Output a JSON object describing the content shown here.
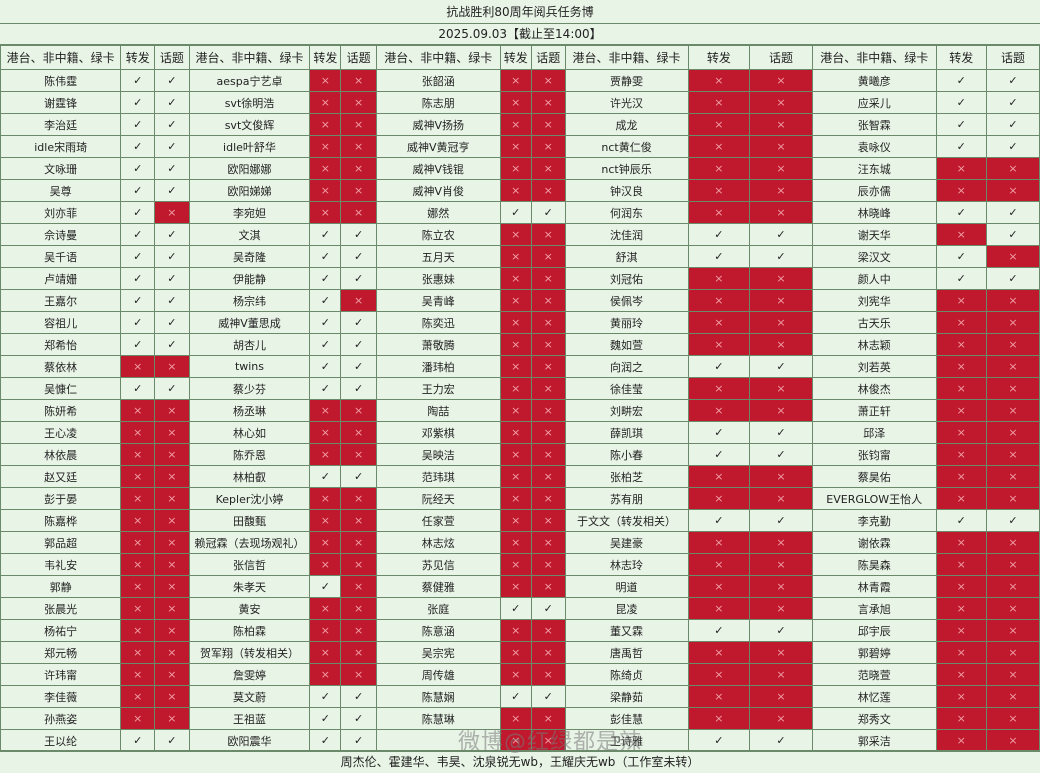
{
  "title": "抗战胜利80周年阅兵任务博",
  "subtitle": "2025.09.03【截止至14:00】",
  "headers": [
    "港台、非中籍、绿卡",
    "转发",
    "话题",
    "港台、非中籍、绿卡",
    "转发",
    "话题",
    "港台、非中籍、绿卡",
    "转发",
    "话题",
    "港台、非中籍、绿卡",
    "转发",
    "话题",
    "港台、非中籍、绿卡",
    "转发",
    "话题"
  ],
  "marks": {
    "yes": "✓",
    "no": "×"
  },
  "rows": [
    [
      "陈伟霆",
      "Y",
      "Y",
      "aespa宁艺卓",
      "N",
      "N",
      "张韶涵",
      "N",
      "N",
      "贾静雯",
      "N",
      "N",
      "黄曦彦",
      "Y",
      "Y"
    ],
    [
      "谢霆锋",
      "Y",
      "Y",
      "svt徐明浩",
      "N",
      "N",
      "陈志朋",
      "N",
      "N",
      "许光汉",
      "N",
      "N",
      "应采儿",
      "Y",
      "Y"
    ],
    [
      "李治廷",
      "Y",
      "Y",
      "svt文俊辉",
      "N",
      "N",
      "威神V扬扬",
      "N",
      "N",
      "成龙",
      "N",
      "N",
      "张智霖",
      "Y",
      "Y"
    ],
    [
      "idle宋雨琦",
      "Y",
      "Y",
      "idle叶舒华",
      "N",
      "N",
      "威神V黄冠亨",
      "N",
      "N",
      "nct黄仁俊",
      "N",
      "N",
      "袁咏仪",
      "Y",
      "Y"
    ],
    [
      "文咏珊",
      "Y",
      "Y",
      "欧阳娜娜",
      "N",
      "N",
      "威神V钱锟",
      "N",
      "N",
      "nct钟辰乐",
      "N",
      "N",
      "汪东城",
      "N",
      "N"
    ],
    [
      "吴尊",
      "Y",
      "Y",
      "欧阳娣娣",
      "N",
      "N",
      "威神V肖俊",
      "N",
      "N",
      "钟汉良",
      "N",
      "N",
      "辰亦儒",
      "N",
      "N"
    ],
    [
      "刘亦菲",
      "Y",
      "N",
      "李宛妲",
      "N",
      "N",
      "娜然",
      "Y",
      "Y",
      "何润东",
      "N",
      "N",
      "林晓峰",
      "Y",
      "Y"
    ],
    [
      "佘诗曼",
      "Y",
      "Y",
      "文淇",
      "Y",
      "Y",
      "陈立农",
      "N",
      "N",
      "沈佳润",
      "Y",
      "Y",
      "谢天华",
      "N",
      "Y"
    ],
    [
      "吴千语",
      "Y",
      "Y",
      "吴奇隆",
      "Y",
      "Y",
      "五月天",
      "N",
      "N",
      "舒淇",
      "Y",
      "Y",
      "梁汉文",
      "Y",
      "N"
    ],
    [
      "卢靖姗",
      "Y",
      "Y",
      "伊能静",
      "Y",
      "Y",
      "张惠妹",
      "N",
      "N",
      "刘冠佑",
      "N",
      "N",
      "颜人中",
      "Y",
      "Y"
    ],
    [
      "王嘉尔",
      "Y",
      "Y",
      "杨宗纬",
      "Y",
      "N",
      "吴青峰",
      "N",
      "N",
      "侯佩岑",
      "N",
      "N",
      "刘宪华",
      "N",
      "N"
    ],
    [
      "容祖儿",
      "Y",
      "Y",
      "威神V董思成",
      "Y",
      "Y",
      "陈奕迅",
      "N",
      "N",
      "黄丽玲",
      "N",
      "N",
      "古天乐",
      "N",
      "N"
    ],
    [
      "郑希怡",
      "Y",
      "Y",
      "胡杏儿",
      "Y",
      "Y",
      "萧敬腾",
      "N",
      "N",
      "魏如萱",
      "N",
      "N",
      "林志颖",
      "N",
      "N"
    ],
    [
      "蔡依林",
      "N",
      "N",
      "twins",
      "Y",
      "Y",
      "潘玮柏",
      "N",
      "N",
      "向润之",
      "Y",
      "Y",
      "刘若英",
      "N",
      "N"
    ],
    [
      "吴慷仁",
      "Y",
      "Y",
      "蔡少芬",
      "Y",
      "Y",
      "王力宏",
      "N",
      "N",
      "徐佳莹",
      "N",
      "N",
      "林俊杰",
      "N",
      "N"
    ],
    [
      "陈妍希",
      "N",
      "N",
      "杨丞琳",
      "N",
      "N",
      "陶喆",
      "N",
      "N",
      "刘畊宏",
      "N",
      "N",
      "萧正轩",
      "N",
      "N"
    ],
    [
      "王心凌",
      "N",
      "N",
      "林心如",
      "N",
      "N",
      "邓紫棋",
      "N",
      "N",
      "薛凯琪",
      "Y",
      "Y",
      "邱泽",
      "N",
      "N"
    ],
    [
      "林依晨",
      "N",
      "N",
      "陈乔恩",
      "N",
      "N",
      "吴映洁",
      "N",
      "N",
      "陈小春",
      "Y",
      "Y",
      "张钧甯",
      "N",
      "N"
    ],
    [
      "赵又廷",
      "N",
      "N",
      "林柏叡",
      "Y",
      "Y",
      "范玮琪",
      "N",
      "N",
      "张柏芝",
      "N",
      "N",
      "蔡昊佑",
      "N",
      "N"
    ],
    [
      "彭于晏",
      "N",
      "N",
      "Kepler沈小婷",
      "N",
      "N",
      "阮经天",
      "N",
      "N",
      "苏有朋",
      "N",
      "N",
      "EVERGLOW王怡人",
      "N",
      "N"
    ],
    [
      "陈嘉桦",
      "N",
      "N",
      "田馥甄",
      "N",
      "N",
      "任家萱",
      "N",
      "N",
      "于文文（转发相关）",
      "Y",
      "Y",
      "李克勤",
      "Y",
      "Y"
    ],
    [
      "郭品超",
      "N",
      "N",
      "赖冠霖（去现场观礼）",
      "N",
      "N",
      "林志炫",
      "N",
      "N",
      "吴建豪",
      "N",
      "N",
      "谢依霖",
      "N",
      "N"
    ],
    [
      "韦礼安",
      "N",
      "N",
      "张信哲",
      "N",
      "N",
      "苏见信",
      "N",
      "N",
      "林志玲",
      "N",
      "N",
      "陈昊森",
      "N",
      "N"
    ],
    [
      "郭静",
      "N",
      "N",
      "朱孝天",
      "Y",
      "N",
      "蔡健雅",
      "N",
      "N",
      "明道",
      "N",
      "N",
      "林青霞",
      "N",
      "N"
    ],
    [
      "张晨光",
      "N",
      "N",
      "黄安",
      "N",
      "N",
      "张庭",
      "Y",
      "Y",
      "昆凌",
      "N",
      "N",
      "言承旭",
      "N",
      "N"
    ],
    [
      "杨祐宁",
      "N",
      "N",
      "陈柏霖",
      "N",
      "N",
      "陈意涵",
      "N",
      "N",
      "董又霖",
      "Y",
      "Y",
      "邱宇辰",
      "N",
      "N"
    ],
    [
      "郑元畅",
      "N",
      "N",
      "贺军翔（转发相关）",
      "N",
      "N",
      "吴宗宪",
      "N",
      "N",
      "唐禹哲",
      "N",
      "N",
      "郭碧婷",
      "N",
      "N"
    ],
    [
      "许玮甯",
      "N",
      "N",
      "詹雯婷",
      "N",
      "N",
      "周传雄",
      "N",
      "N",
      "陈绮贞",
      "N",
      "N",
      "范晓萱",
      "N",
      "N"
    ],
    [
      "李佳薇",
      "N",
      "N",
      "莫文蔚",
      "Y",
      "Y",
      "陈慧娴",
      "Y",
      "Y",
      "梁静茹",
      "N",
      "N",
      "林忆莲",
      "N",
      "N"
    ],
    [
      "孙燕姿",
      "N",
      "N",
      "王祖蓝",
      "Y",
      "Y",
      "陈慧琳",
      "N",
      "N",
      "彭佳慧",
      "N",
      "N",
      "郑秀文",
      "N",
      "N"
    ],
    [
      "王以纶",
      "Y",
      "Y",
      "欧阳震华",
      "Y",
      "Y",
      "",
      "N",
      "N",
      "卫诗雅",
      "Y",
      "Y",
      "郭采洁",
      "N",
      "N"
    ]
  ],
  "footer": "周杰伦、霍建华、韦昊、沈泉锐无wb，王耀庆无wb（工作室未转）",
  "watermark": "微博@红绿都是辣"
}
